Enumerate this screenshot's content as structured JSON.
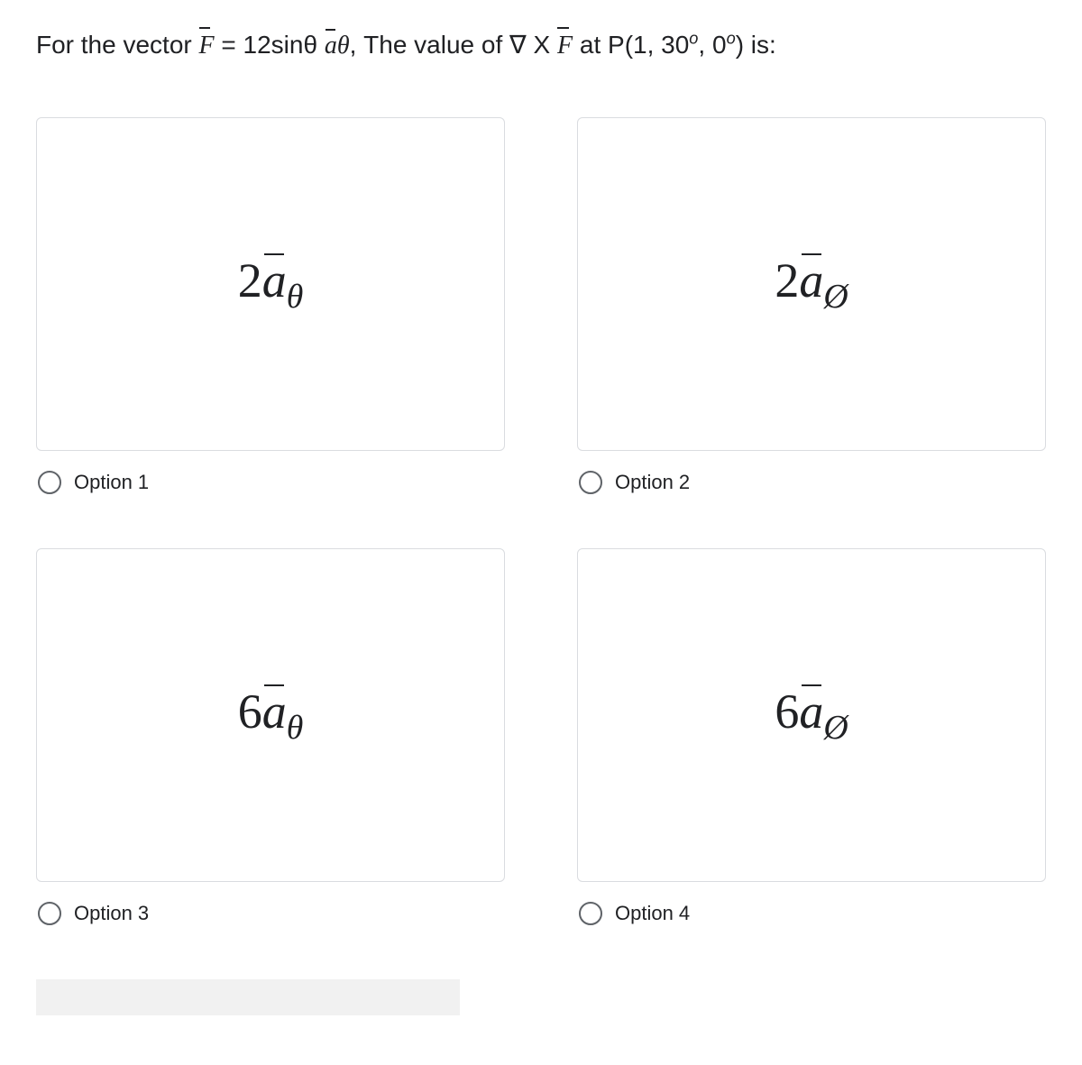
{
  "question": {
    "prefix": "For the vector ",
    "F_html": "F̅",
    "eq": " = 12sinθ ",
    "a_theta_html": "a̅",
    "a_theta_sub": "θ",
    "mid": ", The value of ∇ X ",
    "F2_html": "F̅",
    "tail": " at P(1, 30",
    "deg1": "o",
    "comma": ", 0",
    "deg2": "o",
    "close": ") is:"
  },
  "options": [
    {
      "coef": "2",
      "sub": "θ",
      "label": "Option 1"
    },
    {
      "coef": "2",
      "sub": "Ø",
      "label": "Option 2"
    },
    {
      "coef": "6",
      "sub": "θ",
      "label": "Option 3"
    },
    {
      "coef": "6",
      "sub": "Ø",
      "label": "Option 4"
    }
  ],
  "styles": {
    "card_border": "#dadce0",
    "radio_border": "#5f6368",
    "text_color": "#202124",
    "background": "#ffffff"
  }
}
